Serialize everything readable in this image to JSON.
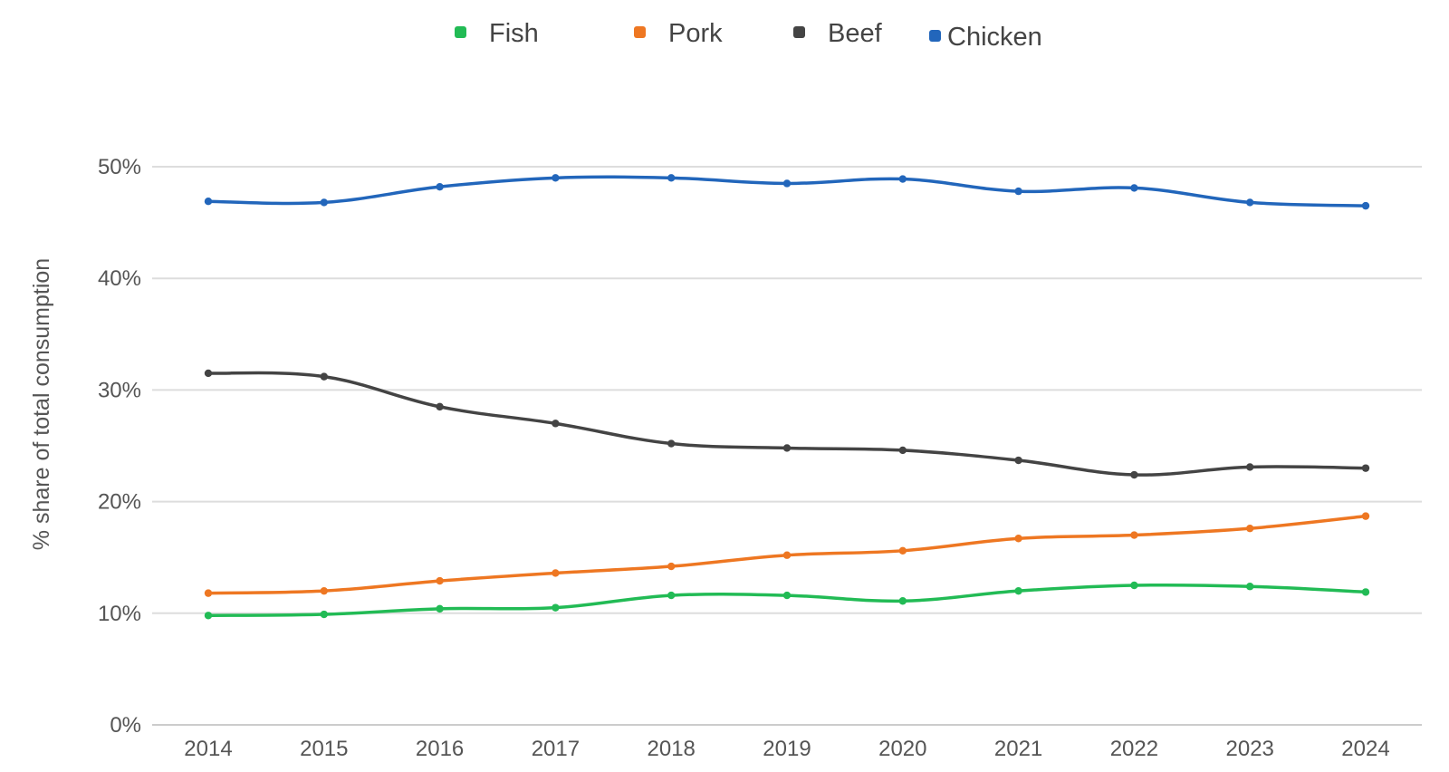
{
  "chart_data": {
    "type": "line",
    "ylabel": "% share of total consumption",
    "xlabel": "",
    "ylim": [
      0,
      50
    ],
    "yticks": [
      0,
      10,
      20,
      30,
      40,
      50
    ],
    "ytick_labels": [
      "0%",
      "10%",
      "20%",
      "30%",
      "40%",
      "50%"
    ],
    "categories": [
      "2014",
      "2015",
      "2016",
      "2017",
      "2018",
      "2019",
      "2020",
      "2021",
      "2022",
      "2023",
      "2024"
    ],
    "legend_position": "top",
    "grid": true,
    "series": [
      {
        "name": "Fish",
        "color": "#22bb55",
        "values": [
          9.8,
          9.9,
          10.4,
          10.5,
          11.6,
          11.6,
          11.1,
          12.0,
          12.5,
          12.4,
          11.9
        ]
      },
      {
        "name": "Pork",
        "color": "#ee7722",
        "values": [
          11.8,
          12.0,
          12.9,
          13.6,
          14.2,
          15.2,
          15.6,
          16.7,
          17.0,
          17.6,
          18.7
        ]
      },
      {
        "name": "Beef",
        "color": "#444444",
        "values": [
          31.5,
          31.2,
          28.5,
          27.0,
          25.2,
          24.8,
          24.6,
          23.7,
          22.4,
          23.1,
          23.0
        ]
      },
      {
        "name": "Chicken",
        "color": "#2266bb",
        "values": [
          46.9,
          46.8,
          48.2,
          49.0,
          49.0,
          48.5,
          48.9,
          47.8,
          48.1,
          46.8,
          46.5
        ]
      }
    ]
  }
}
